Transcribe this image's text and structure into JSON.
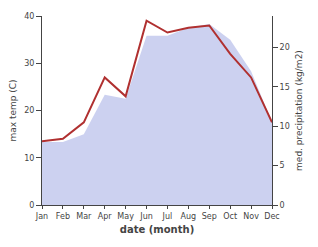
{
  "chart_data": {
    "type": "line",
    "categories": [
      "Jan",
      "Feb",
      "Mar",
      "Apr",
      "May",
      "Jun",
      "Jul",
      "Aug",
      "Sep",
      "Oct",
      "Nov",
      "Dec"
    ],
    "xlabel": "date (month)",
    "ylabel": "max temp (C)",
    "y2label": "med. precipitation (kg/m2)",
    "series": [
      {
        "type": "area",
        "axis": "y2",
        "color": "#b0b8e8",
        "values": [
          8.0,
          8.0,
          9.0,
          14.0,
          13.5,
          21.5,
          21.5,
          22.5,
          23.0,
          21.0,
          17.0,
          10.5
        ]
      },
      {
        "type": "line",
        "color": "#b03030",
        "values": [
          13.5,
          14.0,
          17.5,
          27.0,
          23.0,
          39.0,
          36.5,
          37.5,
          38.0,
          32.0,
          27.0,
          17.5
        ]
      }
    ],
    "ylim": [
      0,
      40
    ],
    "yticks": [
      0,
      10,
      20,
      30,
      40
    ],
    "y2lim": [
      0,
      24
    ],
    "y2ticks": [
      0,
      5,
      10,
      15,
      20
    ],
    "grid": false
  }
}
